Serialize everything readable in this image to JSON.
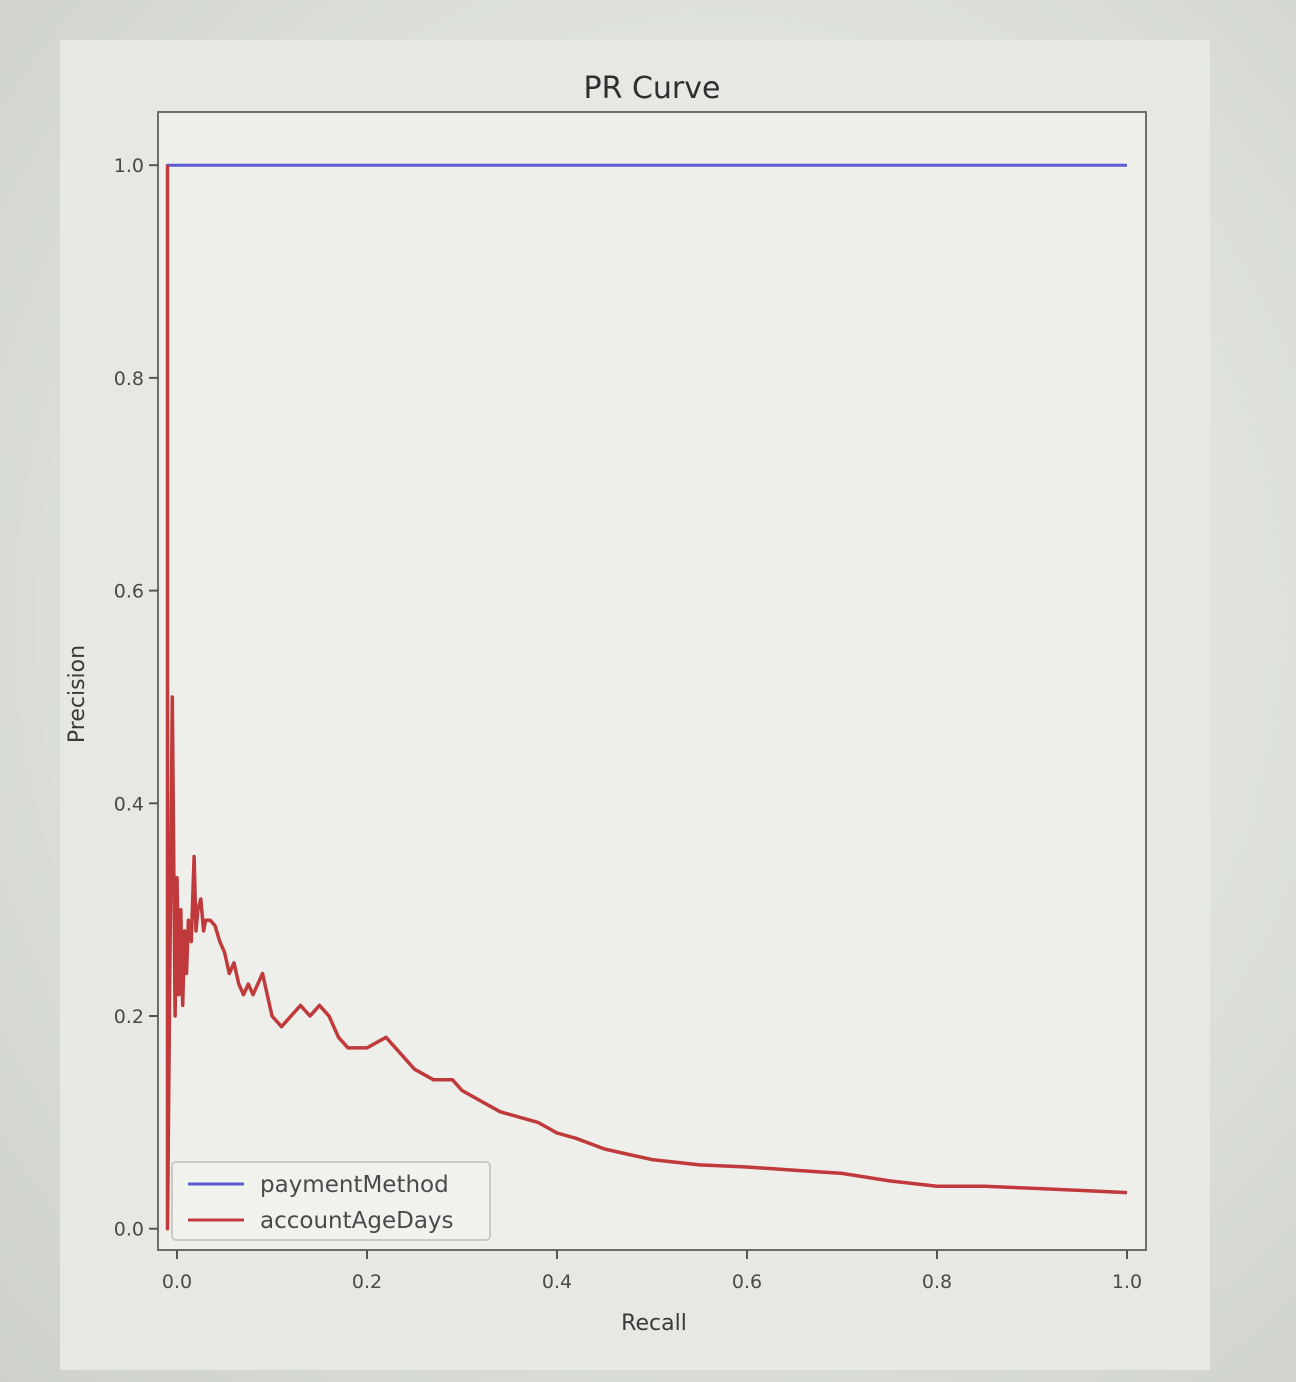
{
  "chart_data": {
    "type": "line",
    "title": "PR Curve",
    "xlabel": "Recall",
    "ylabel": "Precision",
    "xlim": [
      -0.02,
      1.02
    ],
    "ylim": [
      -0.02,
      1.05
    ],
    "xticks": [
      "0.0",
      "0.2",
      "0.4",
      "0.6",
      "0.8",
      "1.0"
    ],
    "xtick_values": [
      0,
      0.2,
      0.4,
      0.6,
      0.8,
      1.0
    ],
    "yticks": [
      "0.0",
      "0.2",
      "0.4",
      "0.6",
      "0.8",
      "1.0"
    ],
    "ytick_values": [
      0,
      0.2,
      0.4,
      0.6,
      0.8,
      1.0
    ],
    "grid": false,
    "legend_position": "lower-left",
    "series": [
      {
        "name": "paymentMethod",
        "color": "#5b5bd6",
        "x": [
          -0.01,
          -0.01,
          1.0
        ],
        "y": [
          0.0,
          1.0,
          1.0
        ]
      },
      {
        "name": "accountAgeDays",
        "color": "#c0393b",
        "x": [
          -0.01,
          -0.01,
          -0.005,
          -0.002,
          0.0,
          0.002,
          0.004,
          0.006,
          0.008,
          0.01,
          0.012,
          0.015,
          0.018,
          0.02,
          0.022,
          0.025,
          0.028,
          0.03,
          0.035,
          0.04,
          0.045,
          0.05,
          0.055,
          0.06,
          0.065,
          0.07,
          0.075,
          0.08,
          0.09,
          0.1,
          0.11,
          0.12,
          0.13,
          0.14,
          0.15,
          0.16,
          0.17,
          0.18,
          0.2,
          0.22,
          0.24,
          0.25,
          0.27,
          0.29,
          0.3,
          0.32,
          0.34,
          0.36,
          0.38,
          0.4,
          0.42,
          0.45,
          0.5,
          0.55,
          0.6,
          0.65,
          0.7,
          0.75,
          0.8,
          0.85,
          0.9,
          0.95,
          1.0
        ],
        "y": [
          1.0,
          0.0,
          0.5,
          0.2,
          0.33,
          0.22,
          0.3,
          0.21,
          0.28,
          0.24,
          0.29,
          0.27,
          0.35,
          0.28,
          0.3,
          0.31,
          0.28,
          0.29,
          0.29,
          0.285,
          0.27,
          0.26,
          0.24,
          0.25,
          0.23,
          0.22,
          0.23,
          0.22,
          0.24,
          0.2,
          0.19,
          0.2,
          0.21,
          0.2,
          0.21,
          0.2,
          0.18,
          0.17,
          0.17,
          0.18,
          0.16,
          0.15,
          0.14,
          0.14,
          0.13,
          0.12,
          0.11,
          0.105,
          0.1,
          0.09,
          0.085,
          0.075,
          0.065,
          0.06,
          0.058,
          0.055,
          0.052,
          0.045,
          0.04,
          0.04,
          0.038,
          0.036,
          0.034
        ]
      }
    ]
  }
}
